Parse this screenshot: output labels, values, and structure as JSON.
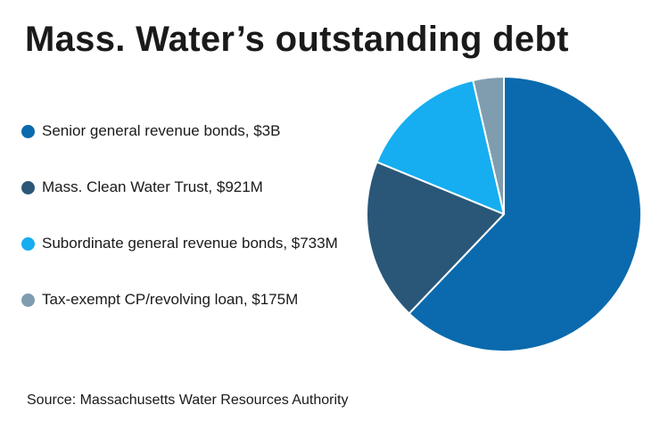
{
  "title": "Mass. Water’s outstanding debt",
  "source": "Source: Massachusetts Water Resources Authority",
  "chart_data": {
    "type": "pie",
    "title": "Mass. Water’s outstanding debt",
    "legend_position": "left",
    "slices": [
      {
        "label": "Senior general revenue bonds, $3B",
        "value": 3000,
        "color": "#0a6aad"
      },
      {
        "label": "Mass. Clean Water Trust, $921M",
        "value": 921,
        "color": "#2a5778"
      },
      {
        "label": "Subordinate general revenue bonds, $733M",
        "value": 733,
        "color": "#16aef0"
      },
      {
        "label": "Tax-exempt CP/revolving loan, $175M",
        "value": 175,
        "color": "#7f9daf"
      }
    ]
  }
}
